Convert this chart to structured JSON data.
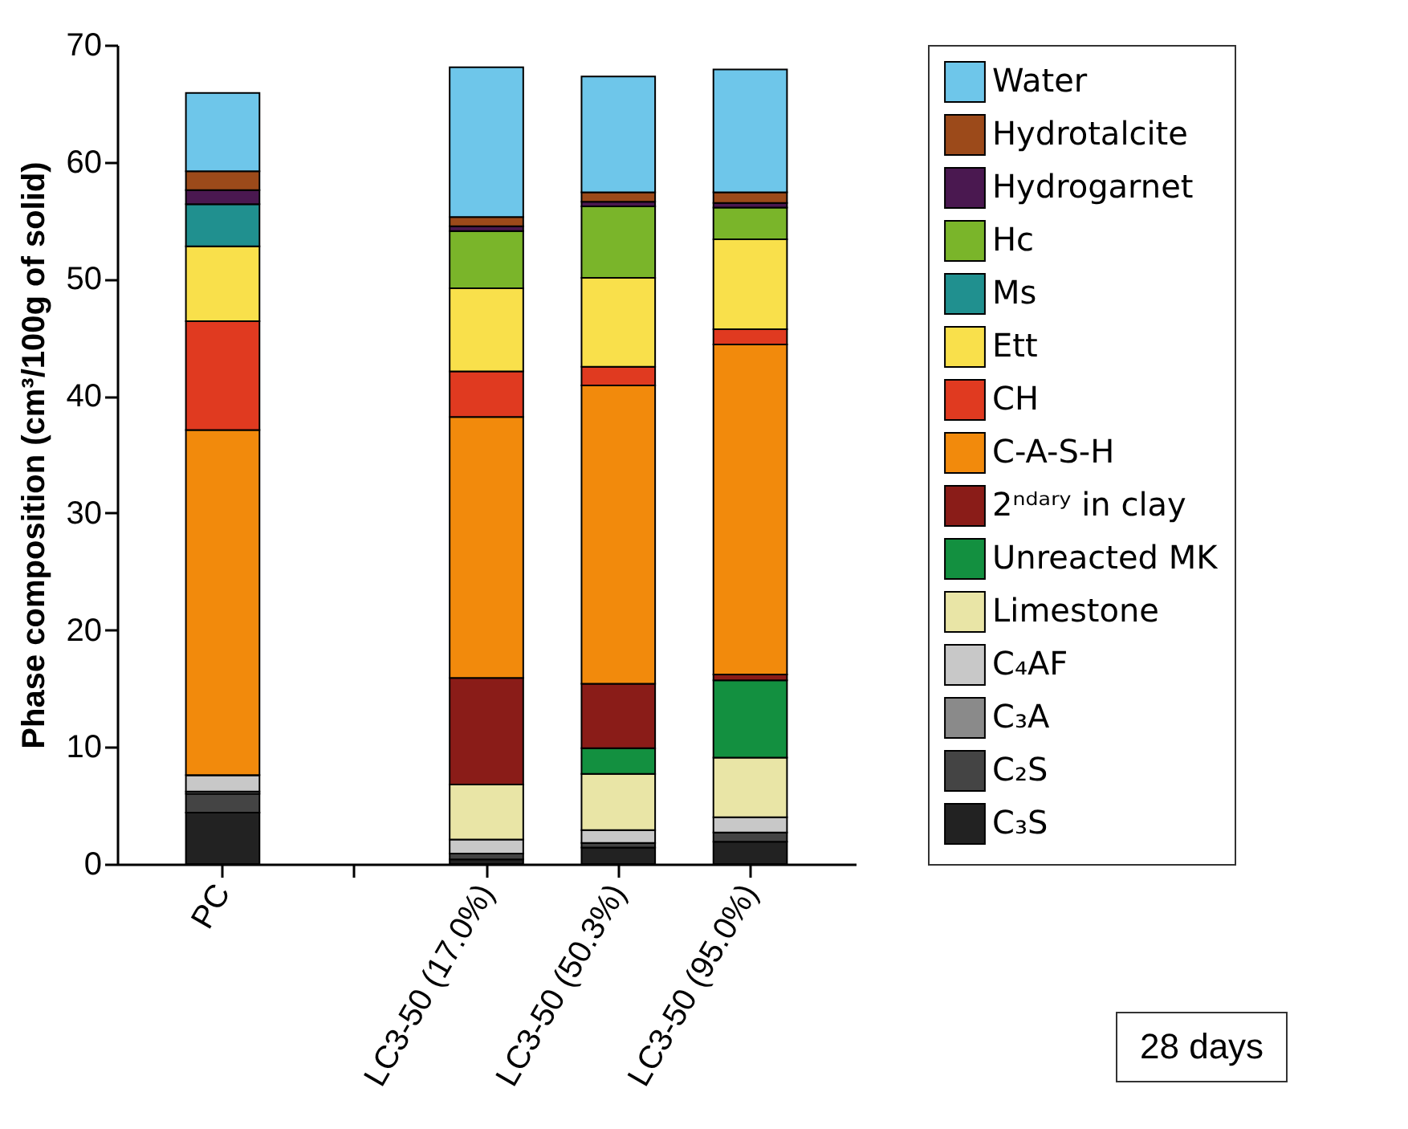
{
  "chart_data": {
    "type": "bar",
    "stacked": true,
    "ylabel": "Phase composition (cm³/100g of solid)",
    "categories": [
      "PC",
      null,
      "LC3-50 (17.0%)",
      "LC3-50 (50.3%)",
      "LC3-50 (95.0%)"
    ],
    "ylim": [
      0,
      70
    ],
    "yticks": [
      0,
      10,
      20,
      30,
      40,
      50,
      60,
      70
    ],
    "grid": false,
    "legend": "right",
    "annotations": [
      "28 days"
    ],
    "series": [
      {
        "name": "C₃S",
        "color": "#222222",
        "values": [
          4.4,
          null,
          0.4,
          1.4,
          1.9
        ]
      },
      {
        "name": "C₂S",
        "color": "#444444",
        "values": [
          1.6,
          null,
          0.5,
          0.4,
          0.8
        ]
      },
      {
        "name": "C₃A",
        "color": "#8a8a8a",
        "values": [
          0.2,
          null,
          0,
          0,
          0
        ]
      },
      {
        "name": "C₄AF",
        "color": "#c8c8c8",
        "values": [
          1.4,
          null,
          1.2,
          1.1,
          1.3
        ]
      },
      {
        "name": "Limestone",
        "color": "#e9e5a6",
        "values": [
          0,
          null,
          4.7,
          4.8,
          5.1
        ]
      },
      {
        "name": "Unreacted MK",
        "color": "#139040",
        "values": [
          0,
          null,
          0,
          2.2,
          6.6
        ]
      },
      {
        "name": "2ⁿᵈᵃʳʸ in clay",
        "color": "#8a1c18",
        "values": [
          0,
          null,
          9.1,
          5.5,
          0.5
        ]
      },
      {
        "name": "C-A-S-H",
        "color": "#f28a0c",
        "values": [
          29.5,
          null,
          22.3,
          25.5,
          28.2
        ]
      },
      {
        "name": "CH",
        "color": "#e03a20",
        "values": [
          9.3,
          null,
          3.9,
          1.6,
          1.3
        ]
      },
      {
        "name": "Ett",
        "color": "#f9e04b",
        "values": [
          6.4,
          null,
          7.1,
          7.6,
          7.7
        ]
      },
      {
        "name": "Ms",
        "color": "#20908f",
        "values": [
          3.6,
          null,
          0,
          0,
          0
        ]
      },
      {
        "name": "Hc",
        "color": "#7ab52a",
        "values": [
          0,
          null,
          4.9,
          6.1,
          2.7
        ]
      },
      {
        "name": "Hydrogarnet",
        "color": "#4a1850",
        "values": [
          1.2,
          null,
          0.4,
          0.4,
          0.4
        ]
      },
      {
        "name": "Hydrotalcite",
        "color": "#9c4a1a",
        "values": [
          1.6,
          null,
          0.8,
          0.8,
          0.9
        ]
      },
      {
        "name": "Water",
        "color": "#6ec6ea",
        "values": [
          6.7,
          null,
          12.8,
          9.9,
          10.5
        ]
      }
    ]
  }
}
